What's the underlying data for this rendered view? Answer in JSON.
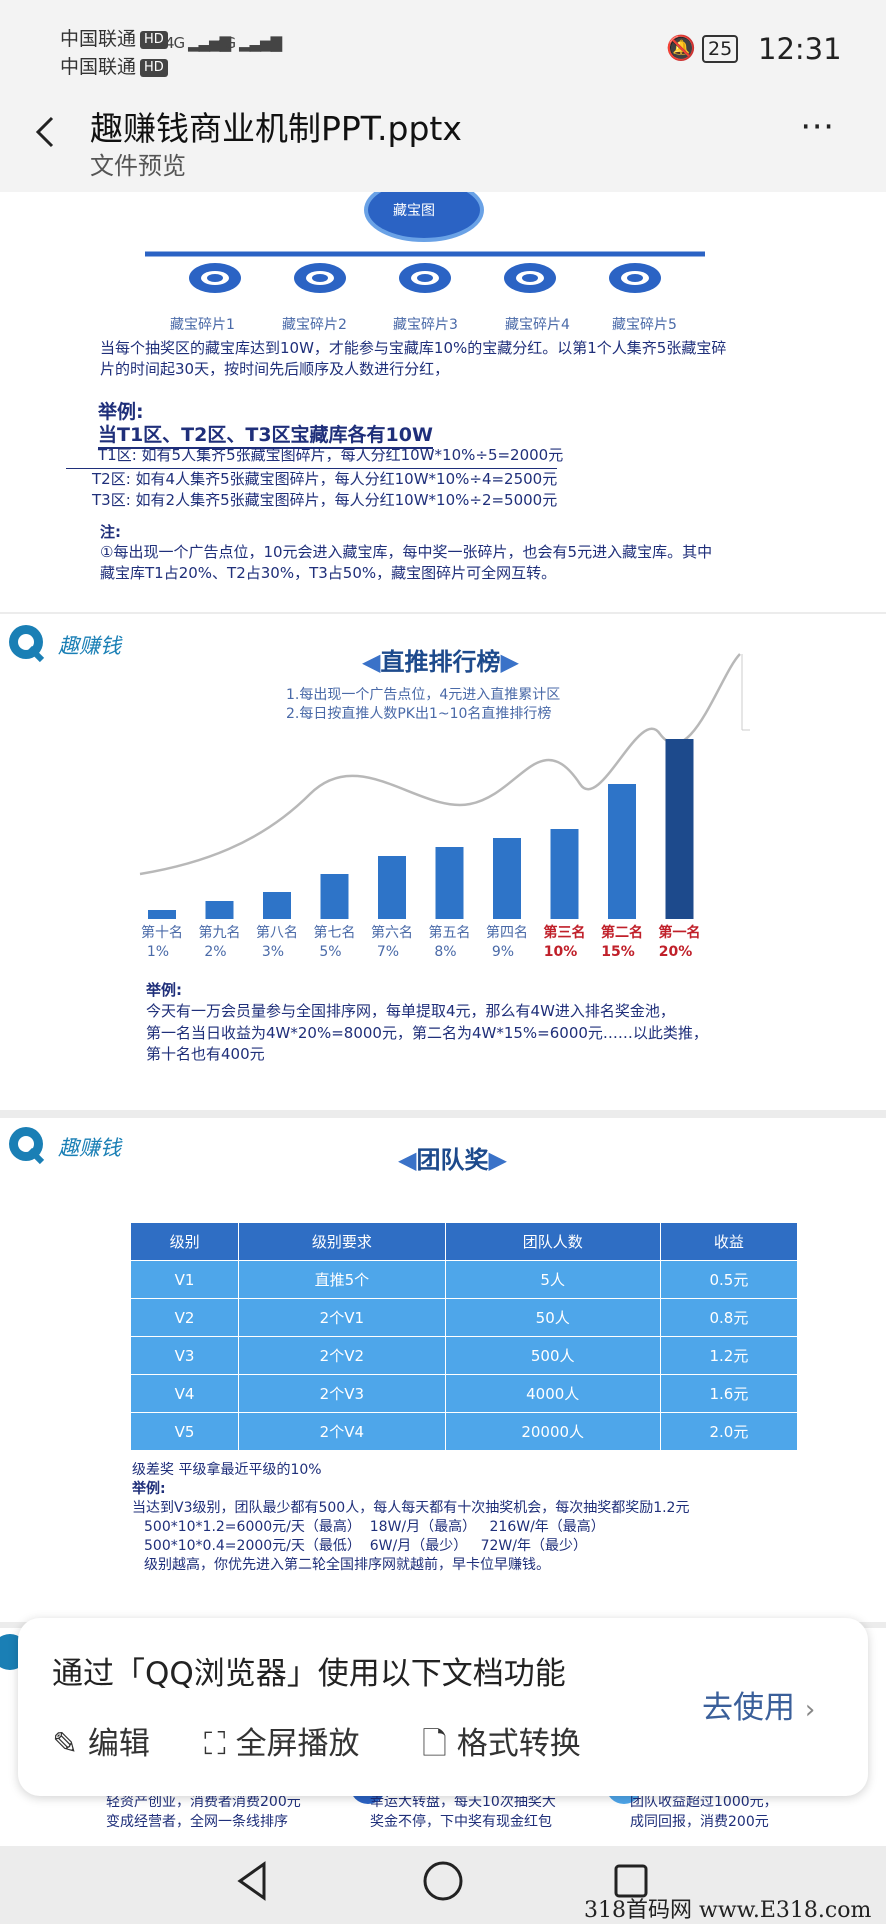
{
  "status": {
    "carrier1": "中国联通",
    "carrier2": "中国联通",
    "hd": "HD",
    "net1": "4G",
    "net2": "4G",
    "battery": "25",
    "time": "12:31"
  },
  "header": {
    "title": "趣赚钱商业机制PPT.pptx",
    "subtitle": "文件预览"
  },
  "slide1": {
    "center": "藏宝图",
    "pieces": [
      "藏宝碎片1",
      "藏宝碎片2",
      "藏宝碎片3",
      "藏宝碎片4",
      "藏宝碎片5"
    ],
    "para1": "当每个抽奖区的藏宝库达到10W，才能参与宝藏库10%的宝藏分红。以第1个人集齐5张藏宝碎",
    "para2": "片的时间起30天，按时间先后顺序及人数进行分红，",
    "ex_label": "举例:",
    "ex_head": "当T1区、T2区、T3区宝藏库各有10W",
    "t1": "T1区:  如有5人集齐5张藏宝图碎片，每人分红10W*10%÷5=2000元",
    "t2": "T2区:  如有4人集齐5张藏宝图碎片，每人分红10W*10%÷4=2500元",
    "t3": "T3区:  如有2人集齐5张藏宝图碎片，每人分红10W*10%÷2=5000元",
    "note_label": "注:",
    "note1": "①每出现一个广告点位，10元会进入藏宝库，每中奖一张碎片，也会有5元进入藏宝库。其中",
    "note2": "藏宝库T1占20%、T2占30%，T3占50%，藏宝图碎片可全网互转。"
  },
  "slide2": {
    "logo": "趣赚钱",
    "title": "直推排行榜",
    "desc1": "1.每出现一个广告点位，4元进入直推累计区",
    "desc2": "2.每日按直推人数PK出1~10名直推排行榜",
    "ex_label": "举例:",
    "ex1": "今天有一万会员量参与全国排序网，每单提取4元，那么有4W进入排名奖金池，",
    "ex2": "第一名当日收益为4W*20%=8000元，第二名为4W*15%=6000元……以此类推，",
    "ex3": "第十名也有400元"
  },
  "chart_data": {
    "type": "bar",
    "categories": [
      "第十名",
      "第九名",
      "第八名",
      "第七名",
      "第六名",
      "第五名",
      "第四名",
      "第三名",
      "第二名",
      "第一名"
    ],
    "percent_labels": [
      "1%",
      "2%",
      "3%",
      "5%",
      "7%",
      "8%",
      "9%",
      "10%",
      "15%",
      "20%"
    ],
    "values": [
      1,
      2,
      3,
      5,
      7,
      8,
      9,
      10,
      15,
      20
    ],
    "highlight_top": 3,
    "colors": {
      "bar": "#2e74c8",
      "top_bar": "#1d4a8c",
      "label": "#4a6aa8",
      "top_label": "#c0202a",
      "curve": "#b8b8b8"
    },
    "ylim": [
      0,
      20
    ]
  },
  "slide3": {
    "logo": "趣赚钱",
    "title": "团队奖",
    "columns": [
      "级别",
      "级别要求",
      "团队人数",
      "收益"
    ],
    "rows": [
      [
        "V1",
        "直推5个",
        "5人",
        "0.5元"
      ],
      [
        "V2",
        "2个V1",
        "50人",
        "0.8元"
      ],
      [
        "V3",
        "2个V2",
        "500人",
        "1.2元"
      ],
      [
        "V4",
        "2个V3",
        "4000人",
        "1.6元"
      ],
      [
        "V5",
        "2个V4",
        "20000人",
        "2.0元"
      ]
    ],
    "note1": "级差奖 平级拿最近平级的10%",
    "note2": "举例:",
    "note3": "当达到V3级别，团队最少都有500人，每人每天都有十次抽奖机会，每次抽奖都奖励1.2元",
    "note4": "500*10*1.2=6000元/天（最高）  18W/月（最高）   216W/年（最高）",
    "note5": "500*10*0.4=2000元/天（最低）  6W/月（最少）   72W/年（最少）",
    "note6": "级别越高，你优先进入第二轮全国排序网就越前，早卡位早赚钱。"
  },
  "slide4": {
    "t1": "轻资产创业，消费者消费200元",
    "t1b": "变成经营者，全网一条线排序",
    "t2": "幸运大转盘，每天10次抽奖大",
    "t2b": "奖金不停，下中奖有现金红包",
    "t3": "团队收益超过1000元，",
    "t3b": "成同回报，消费200元"
  },
  "popup": {
    "title": "通过「QQ浏览器」使用以下文档功能",
    "edit": "编辑",
    "fullscreen": "全屏播放",
    "convert": "格式转换",
    "go": "去使用"
  },
  "watermark": "318首码网 www.E318.com"
}
